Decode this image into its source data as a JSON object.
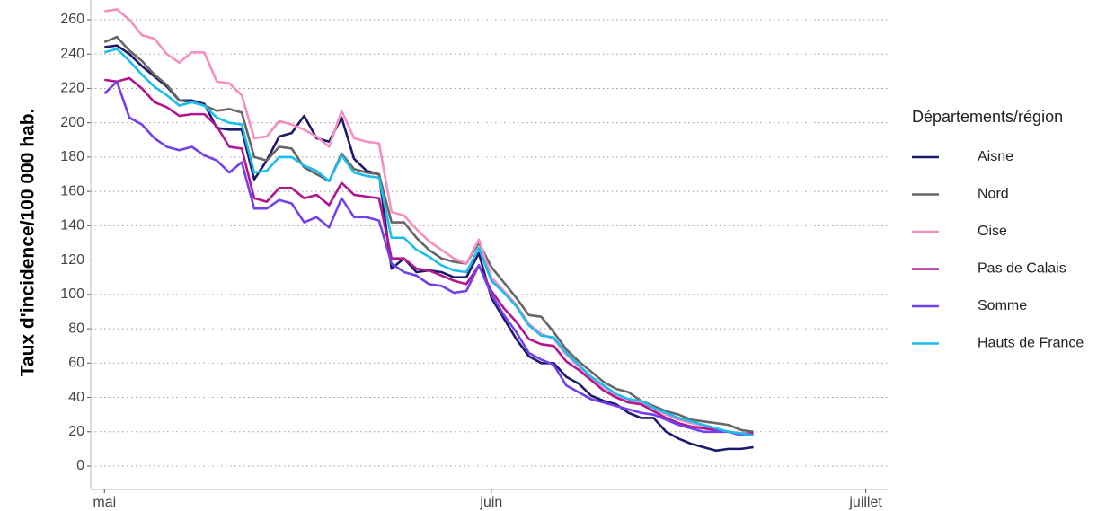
{
  "chart_data": {
    "type": "line",
    "ylabel": "Taux d'incidence/100 000 hab.",
    "legend_title": "Départements/région",
    "legend": "right",
    "grid": true,
    "x": [
      0,
      1,
      2,
      3,
      4,
      5,
      6,
      7,
      8,
      9,
      10,
      11,
      12,
      13,
      14,
      15,
      16,
      17,
      18,
      19,
      20,
      21,
      22,
      23,
      24,
      25,
      26,
      27,
      28,
      29,
      30,
      31,
      32,
      33,
      34,
      35,
      36,
      37,
      38,
      39,
      40,
      41,
      42,
      43,
      44,
      45,
      46,
      47,
      48,
      49,
      50,
      51,
      52
    ],
    "xlim": [
      -1.1,
      62.9
    ],
    "xticks": [
      {
        "value": 0,
        "label": "mai"
      },
      {
        "value": 31,
        "label": "juin"
      },
      {
        "value": 61,
        "label": "juillet"
      }
    ],
    "ylim": [
      -13.6,
      271.5
    ],
    "yticks": [
      0,
      20,
      40,
      60,
      80,
      100,
      120,
      140,
      160,
      180,
      200,
      220,
      240,
      260
    ],
    "series": [
      {
        "name": "Aisne",
        "color": "#1b1a6b",
        "values": [
          244,
          245,
          240,
          233,
          227,
          221,
          213,
          213,
          211,
          197,
          196,
          196,
          167,
          178,
          192,
          194,
          204,
          191,
          189,
          203,
          179,
          172,
          170,
          115,
          121,
          113,
          114,
          113,
          110,
          110,
          124,
          98,
          86,
          74,
          64,
          60,
          60,
          52,
          48,
          41,
          38,
          36,
          31,
          28,
          28,
          20,
          16,
          13,
          11,
          9,
          10,
          10,
          11
        ]
      },
      {
        "name": "Nord",
        "color": "#666666",
        "values": [
          247,
          250,
          242,
          236,
          228,
          222,
          213,
          212,
          210,
          207,
          208,
          206,
          180,
          178,
          186,
          185,
          174,
          170,
          166,
          182,
          173,
          171,
          170,
          142,
          142,
          133,
          126,
          121,
          119,
          118,
          130,
          116,
          107,
          98,
          88,
          87,
          78,
          68,
          61,
          55,
          49,
          45,
          43,
          38,
          35,
          32,
          30,
          27,
          26,
          25,
          24,
          21,
          20
        ]
      },
      {
        "name": "Oise",
        "color": "#f48fc1",
        "values": [
          265,
          266,
          260,
          251,
          249,
          240,
          235,
          241,
          241,
          224,
          223,
          216,
          191,
          192,
          201,
          199,
          196,
          192,
          186,
          207,
          191,
          189,
          188,
          148,
          146,
          138,
          131,
          126,
          121,
          118,
          132,
          110,
          102,
          94,
          83,
          77,
          74,
          65,
          58,
          51,
          46,
          41,
          38,
          37,
          33,
          30,
          27,
          25,
          23,
          21,
          20,
          19,
          18
        ]
      },
      {
        "name": "Pas de Calais",
        "color": "#b0178e",
        "values": [
          225,
          224,
          226,
          220,
          212,
          209,
          204,
          205,
          205,
          198,
          186,
          185,
          156,
          154,
          162,
          162,
          156,
          158,
          152,
          165,
          158,
          157,
          156,
          121,
          121,
          115,
          114,
          111,
          108,
          106,
          117,
          102,
          92,
          84,
          74,
          71,
          70,
          61,
          56,
          50,
          44,
          40,
          37,
          36,
          32,
          28,
          25,
          23,
          22,
          21,
          20,
          19,
          19
        ]
      },
      {
        "name": "Somme",
        "color": "#7340ee",
        "values": [
          217,
          224,
          203,
          199,
          191,
          186,
          184,
          186,
          181,
          178,
          171,
          177,
          150,
          150,
          155,
          153,
          142,
          145,
          139,
          156,
          145,
          145,
          143,
          118,
          113,
          111,
          106,
          105,
          101,
          102,
          117,
          100,
          88,
          78,
          66,
          62,
          59,
          47,
          43,
          39,
          37,
          35,
          33,
          31,
          30,
          27,
          24,
          22,
          20,
          20,
          20,
          18,
          18
        ]
      },
      {
        "name": "Hauts de France",
        "color": "#19bdee",
        "values": [
          241,
          243,
          236,
          228,
          221,
          216,
          210,
          212,
          210,
          203,
          200,
          199,
          171,
          172,
          180,
          180,
          175,
          172,
          166,
          181,
          171,
          169,
          168,
          133,
          133,
          126,
          122,
          117,
          114,
          113,
          127,
          108,
          101,
          93,
          82,
          76,
          75,
          66,
          59,
          52,
          47,
          42,
          39,
          38,
          34,
          31,
          28,
          26,
          24,
          22,
          20,
          19,
          18
        ]
      }
    ]
  }
}
